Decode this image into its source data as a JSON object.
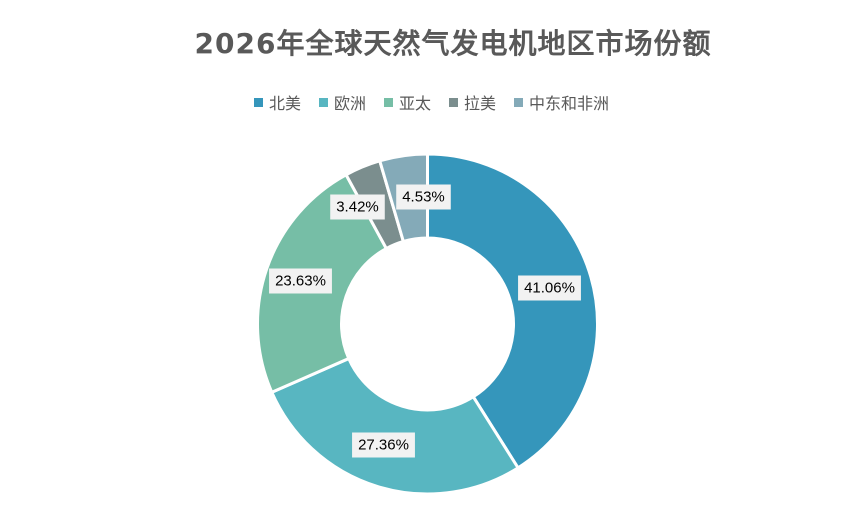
{
  "chart_data": {
    "type": "pie",
    "subtype": "donut",
    "title": "2026年全球天然气发电机地区市场份额",
    "categories": [
      "北美",
      "欧洲",
      "亚太",
      "拉美",
      "中东和非洲"
    ],
    "values": [
      41.06,
      27.36,
      23.63,
      3.42,
      4.53
    ],
    "labels": [
      "41.06%",
      "27.36%",
      "23.63%",
      "3.42%",
      "4.53%"
    ],
    "colors": [
      "#3596bb",
      "#58b6c1",
      "#76bea6",
      "#7b8e8e",
      "#84aab8"
    ],
    "legend_position": "top"
  }
}
